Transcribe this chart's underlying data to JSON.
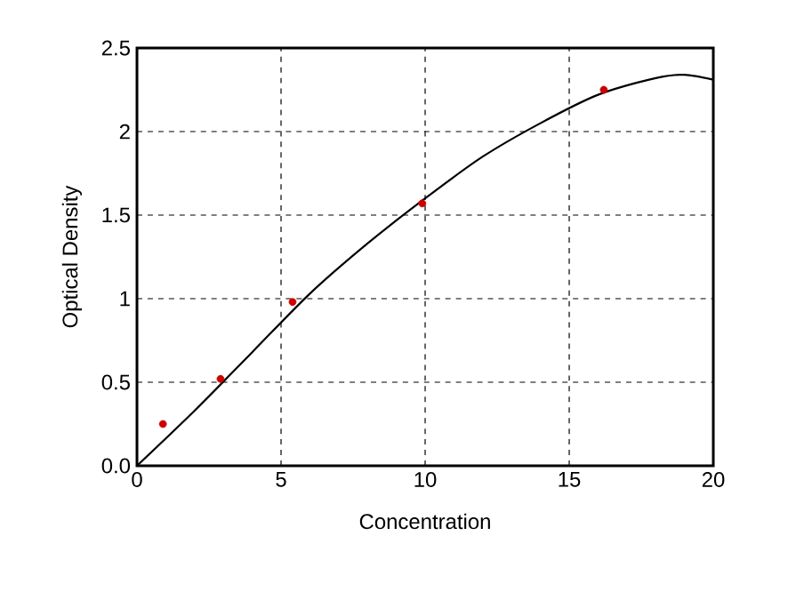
{
  "chart_data": {
    "type": "line",
    "xlabel": "Concentration",
    "ylabel": "Optical Density",
    "xlim": [
      0,
      20
    ],
    "ylim": [
      0,
      2.5
    ],
    "xticks": [
      0,
      5,
      10,
      15,
      20
    ],
    "yticks": [
      {
        "value": 0,
        "label": "0.0"
      },
      0.5,
      1,
      1.5,
      2,
      2.5
    ],
    "grid": true,
    "series": [
      {
        "color": "#000000",
        "marker": "none",
        "x": [
          0,
          2,
          4,
          6,
          8,
          10,
          12,
          14,
          16,
          18,
          19,
          20
        ],
        "values": [
          0,
          0.33,
          0.68,
          1.03,
          1.33,
          1.6,
          1.85,
          2.05,
          2.22,
          2.32,
          2.34,
          2.31
        ]
      },
      {
        "type": "scatter",
        "color": "#cc0000",
        "marker": "circle",
        "x": [
          0.9,
          2.9,
          5.4,
          9.9,
          16.2
        ],
        "values": [
          0.25,
          0.52,
          0.98,
          1.57,
          2.25
        ]
      }
    ]
  }
}
